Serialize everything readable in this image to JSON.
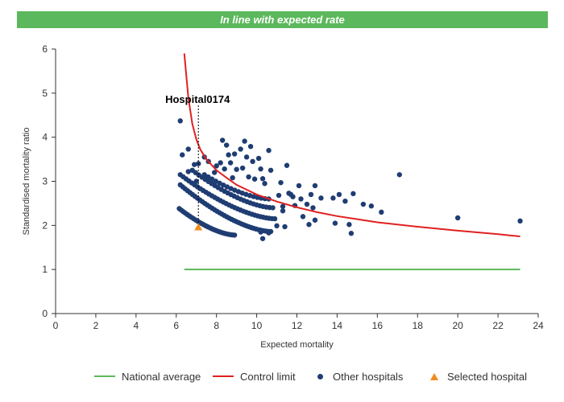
{
  "banner": {
    "text": "In line with expected rate"
  },
  "colors": {
    "banner": "#5cb85c",
    "national": "#5cb85c",
    "control": "#e02020",
    "other": "#1f3d73",
    "selected": "#f08c1e"
  },
  "chart_data": {
    "type": "scatter",
    "xlabel": "Expected mortality",
    "ylabel": "Standardised mortality ratio",
    "xlim": [
      0,
      24
    ],
    "ylim": [
      0,
      6
    ],
    "xticks": [
      0,
      2,
      4,
      6,
      8,
      10,
      12,
      14,
      16,
      18,
      20,
      22,
      24
    ],
    "yticks": [
      0,
      1,
      2,
      3,
      4,
      5,
      6
    ],
    "grid": false,
    "legend_position": "bottom",
    "national_average": {
      "name": "National average",
      "y": 1,
      "x_range": [
        6.4,
        23.1
      ]
    },
    "control_limit": {
      "name": "Control limit",
      "points": [
        [
          6.4,
          5.9
        ],
        [
          6.6,
          4.9
        ],
        [
          6.8,
          4.3
        ],
        [
          7.0,
          3.95
        ],
        [
          7.2,
          3.72
        ],
        [
          7.5,
          3.5
        ],
        [
          8.0,
          3.25
        ],
        [
          8.5,
          3.08
        ],
        [
          9.0,
          2.92
        ],
        [
          10.0,
          2.7
        ],
        [
          11.0,
          2.54
        ],
        [
          12.0,
          2.41
        ],
        [
          13.0,
          2.3
        ],
        [
          14.0,
          2.21
        ],
        [
          15.0,
          2.14
        ],
        [
          16.0,
          2.07
        ],
        [
          18.0,
          1.97
        ],
        [
          20.0,
          1.88
        ],
        [
          22.0,
          1.8
        ],
        [
          23.1,
          1.75
        ]
      ]
    },
    "other_hospitals": {
      "name": "Other hospitals",
      "points": [
        [
          6.2,
          4.37
        ],
        [
          6.3,
          3.6
        ],
        [
          6.6,
          3.73
        ],
        [
          6.6,
          3.22
        ],
        [
          6.9,
          3.38
        ],
        [
          7.1,
          3.4
        ],
        [
          7.0,
          3.0
        ],
        [
          7.4,
          3.55
        ],
        [
          7.6,
          3.45
        ],
        [
          7.5,
          3.1
        ],
        [
          7.9,
          3.2
        ],
        [
          8.0,
          3.35
        ],
        [
          8.2,
          3.42
        ],
        [
          8.3,
          3.93
        ],
        [
          8.5,
          3.82
        ],
        [
          8.4,
          3.28
        ],
        [
          8.6,
          3.6
        ],
        [
          8.7,
          3.42
        ],
        [
          8.9,
          3.62
        ],
        [
          8.8,
          3.08
        ],
        [
          9.0,
          3.27
        ],
        [
          9.2,
          3.73
        ],
        [
          9.4,
          3.91
        ],
        [
          9.3,
          3.3
        ],
        [
          9.5,
          3.55
        ],
        [
          9.7,
          3.79
        ],
        [
          9.8,
          3.45
        ],
        [
          9.6,
          3.1
        ],
        [
          9.9,
          3.05
        ],
        [
          10.1,
          3.52
        ],
        [
          10.2,
          3.28
        ],
        [
          10.6,
          3.7
        ],
        [
          10.3,
          3.06
        ],
        [
          10.7,
          3.25
        ],
        [
          10.4,
          2.95
        ],
        [
          11.2,
          2.97
        ],
        [
          11.1,
          2.68
        ],
        [
          11.5,
          3.36
        ],
        [
          11.6,
          2.73
        ],
        [
          11.7,
          2.7
        ],
        [
          11.8,
          2.65
        ],
        [
          12.1,
          2.9
        ],
        [
          12.2,
          2.6
        ],
        [
          12.5,
          2.48
        ],
        [
          12.9,
          2.9
        ],
        [
          13.2,
          2.62
        ],
        [
          12.7,
          2.7
        ],
        [
          13.8,
          2.62
        ],
        [
          14.1,
          2.7
        ],
        [
          14.4,
          2.55
        ],
        [
          14.8,
          2.72
        ],
        [
          15.3,
          2.48
        ],
        [
          15.7,
          2.44
        ],
        [
          16.2,
          2.3
        ],
        [
          17.1,
          3.15
        ],
        [
          20.0,
          2.17
        ],
        [
          23.1,
          2.1
        ],
        [
          11.3,
          2.33
        ],
        [
          11.9,
          2.45
        ],
        [
          12.3,
          2.2
        ],
        [
          12.6,
          2.02
        ],
        [
          12.9,
          2.12
        ],
        [
          12.8,
          2.4
        ],
        [
          13.9,
          2.05
        ],
        [
          14.6,
          2.02
        ],
        [
          14.7,
          1.82
        ],
        [
          11.0,
          1.99
        ],
        [
          11.4,
          1.97
        ],
        [
          10.3,
          1.7
        ],
        [
          10.2,
          1.85
        ],
        [
          10.6,
          1.83
        ],
        [
          11.3,
          2.43
        ]
      ],
      "arcs": [
        {
          "x_start": 6.15,
          "x_end": 8.9,
          "y_start": 2.38,
          "y_end": 1.78,
          "n": 28
        },
        {
          "x_start": 6.2,
          "x_end": 10.7,
          "y_start": 2.92,
          "y_end": 1.86,
          "n": 38
        },
        {
          "x_start": 6.2,
          "x_end": 10.9,
          "y_start": 3.15,
          "y_end": 2.15,
          "n": 34
        },
        {
          "x_start": 6.8,
          "x_end": 10.8,
          "y_start": 3.25,
          "y_end": 2.4,
          "n": 26
        },
        {
          "x_start": 7.4,
          "x_end": 10.6,
          "y_start": 3.15,
          "y_end": 2.6,
          "n": 18
        }
      ]
    },
    "selected_hospital": {
      "name": "Selected hospital",
      "label": "Hospital0174",
      "x": 7.1,
      "y": 1.96
    }
  },
  "legend": {
    "national": "National average",
    "control": "Control limit",
    "other": "Other hospitals",
    "selected": "Selected hospital"
  }
}
